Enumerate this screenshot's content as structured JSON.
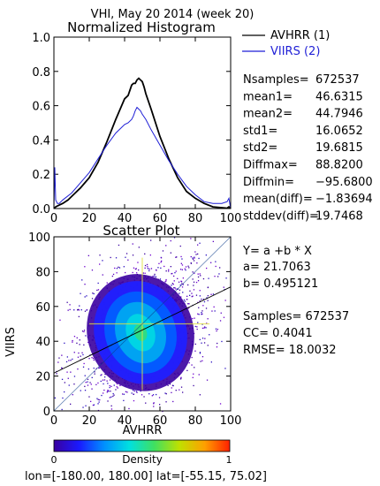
{
  "header": {
    "title": "VHI,  May 20 2014 (week 20)"
  },
  "histogram": {
    "title": "Normalized Histogram",
    "legend": [
      {
        "label": "AVHRR (1)",
        "color": "#000000"
      },
      {
        "label": "VIIRS (2)",
        "color": "#1f1fd6"
      }
    ],
    "stats": [
      {
        "label": "Nsamples=",
        "value": "672537"
      },
      {
        "label": "mean1=",
        "value": "46.6315"
      },
      {
        "label": "mean2=",
        "value": "44.7946"
      },
      {
        "label": "std1=",
        "value": "16.0652"
      },
      {
        "label": "std2=",
        "value": "19.6815"
      },
      {
        "label": "Diffmax=",
        "value": "88.8200"
      },
      {
        "label": "Diffmin=",
        "value": "−95.6800"
      },
      {
        "label": "mean(diff)=",
        "value": "−1.83694"
      },
      {
        "label": "stddev(diff)=",
        "value": "19.7468"
      }
    ]
  },
  "scatter": {
    "title": "Scatter Plot",
    "fit": [
      "Y= a +b * X",
      "a= 21.7063",
      "b= 0.495121"
    ],
    "stats": [
      "Samples= 672537",
      "CC=  0.4041",
      "RMSE= 18.0032"
    ]
  },
  "colorbar": {
    "label": "Density",
    "min": "0",
    "max": "1",
    "colors": [
      "#3a00a0",
      "#1a1aff",
      "#0090ff",
      "#00e0e0",
      "#40e060",
      "#c0e000",
      "#ffa000",
      "#ff2000"
    ]
  },
  "footer": {
    "text": "lon=[-180.00, 180.00] lat=[-55.15, 75.02]"
  },
  "chart_data": [
    {
      "type": "line",
      "title": "Normalized Histogram",
      "xlabel": "",
      "ylabel": "",
      "xlim": [
        0,
        100
      ],
      "ylim": [
        0,
        1.0
      ],
      "xticks": [
        0,
        20,
        40,
        60,
        80,
        100
      ],
      "yticks": [
        "0.0",
        "0.2",
        "0.4",
        "0.6",
        "0.8",
        "1.0"
      ],
      "series": [
        {
          "name": "AVHRR (1)",
          "color": "#000000",
          "x": [
            0,
            1,
            3,
            5,
            8,
            10,
            15,
            20,
            25,
            30,
            35,
            40,
            42,
            44,
            45,
            46,
            47,
            48,
            49,
            50,
            51,
            52,
            55,
            60,
            65,
            70,
            75,
            80,
            85,
            90,
            95,
            98,
            99,
            100
          ],
          "y": [
            0.0,
            0.01,
            0.02,
            0.03,
            0.05,
            0.07,
            0.12,
            0.18,
            0.27,
            0.39,
            0.52,
            0.64,
            0.66,
            0.72,
            0.73,
            0.73,
            0.75,
            0.76,
            0.75,
            0.74,
            0.71,
            0.67,
            0.58,
            0.42,
            0.29,
            0.18,
            0.1,
            0.06,
            0.03,
            0.01,
            0.005,
            0.002,
            0.01,
            0.0
          ]
        },
        {
          "name": "VIIRS (2)",
          "color": "#1f1fd6",
          "x": [
            0,
            0.5,
            1,
            2,
            3,
            5,
            10,
            15,
            20,
            25,
            30,
            35,
            40,
            42,
            44,
            45,
            46,
            47,
            48,
            49,
            50,
            52,
            55,
            60,
            65,
            70,
            75,
            80,
            85,
            90,
            95,
            98,
            99,
            100
          ],
          "y": [
            0.0,
            0.24,
            0.05,
            0.03,
            0.03,
            0.05,
            0.09,
            0.15,
            0.21,
            0.29,
            0.37,
            0.44,
            0.49,
            0.5,
            0.52,
            0.54,
            0.57,
            0.59,
            0.58,
            0.57,
            0.55,
            0.52,
            0.46,
            0.37,
            0.28,
            0.2,
            0.13,
            0.08,
            0.04,
            0.03,
            0.03,
            0.04,
            0.06,
            0.0
          ]
        }
      ]
    },
    {
      "type": "scatter",
      "title": "Scatter Plot",
      "xlabel": "AVHRR",
      "ylabel": "VIIRS",
      "xlim": [
        0,
        100
      ],
      "ylim": [
        0,
        100
      ],
      "xticks": [
        0,
        20,
        40,
        60,
        80,
        100
      ],
      "yticks": [
        0,
        20,
        40,
        60,
        80,
        100
      ],
      "density_center": [
        49,
        45
      ],
      "fit_line": {
        "a": 21.7063,
        "b": 0.495121
      },
      "reference_line": "y=x"
    }
  ]
}
